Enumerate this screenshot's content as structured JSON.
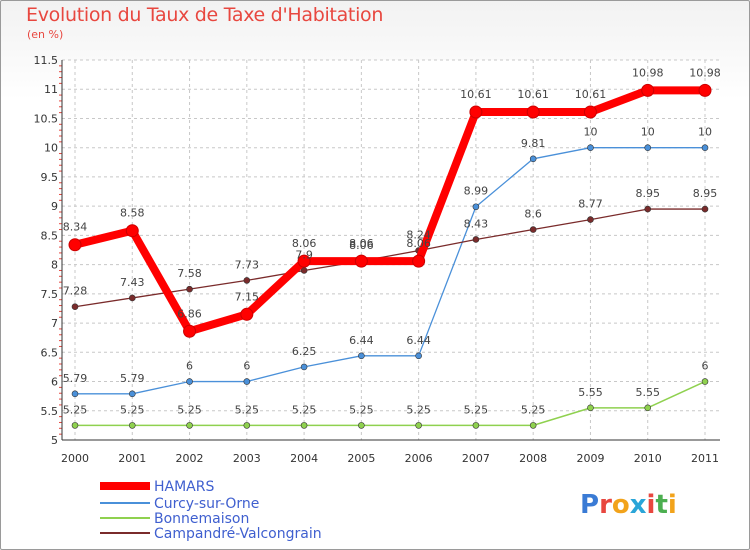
{
  "header": {
    "title": "Evolution du Taux de Taxe d'Habitation",
    "unit": "(en %)"
  },
  "logo": {
    "letters": [
      "P",
      "r",
      "o",
      "x",
      "i",
      "t",
      "i"
    ],
    "colors": [
      "#3a7bd5",
      "#e8473f",
      "#f2a31b",
      "#2aa5d8",
      "#e8473f",
      "#4caf50",
      "#f2a31b"
    ]
  },
  "chart_data": {
    "type": "line",
    "x": [
      "2000",
      "2001",
      "2002",
      "2003",
      "2004",
      "2005",
      "2006",
      "2007",
      "2008",
      "2009",
      "2010",
      "2011"
    ],
    "ylim": [
      5,
      11.5
    ],
    "yticks": [
      "5",
      "5.5",
      "6",
      "6.5",
      "7",
      "7.5",
      "8",
      "8.5",
      "9",
      "9.5",
      "10",
      "10.5",
      "11",
      "11.5"
    ],
    "grid": true,
    "legend_position": "bottom-left",
    "series": [
      {
        "name": "HAMARS",
        "color": "#ff0000",
        "values": [
          8.34,
          8.58,
          6.86,
          7.15,
          8.06,
          8.06,
          8.06,
          10.61,
          10.61,
          10.61,
          10.98,
          10.98
        ],
        "labels": [
          "8.34",
          "8.58",
          "6.86",
          "7.15",
          "8.06",
          "8.06",
          "8.06",
          "10.61",
          "10.61",
          "10.61",
          "10.98",
          "10.98"
        ]
      },
      {
        "name": "Curcy-sur-Orne",
        "color": "#4a90d9",
        "values": [
          5.79,
          5.79,
          6,
          6,
          6.25,
          6.44,
          6.44,
          8.99,
          9.81,
          10,
          10,
          10
        ],
        "labels": [
          "5.79",
          "5.79",
          "6",
          "6",
          "6.25",
          "6.44",
          "6.44",
          "8.99",
          "9.81",
          "10",
          "10",
          "10"
        ]
      },
      {
        "name": "Bonnemaison",
        "color": "#8fd14f",
        "values": [
          5.25,
          5.25,
          5.25,
          5.25,
          5.25,
          5.25,
          5.25,
          5.25,
          5.25,
          5.55,
          5.55,
          6
        ],
        "labels": [
          "5.25",
          "5.25",
          "5.25",
          "5.25",
          "5.25",
          "5.25",
          "5.25",
          "5.25",
          "5.25",
          "5.55",
          "5.55",
          "6"
        ]
      },
      {
        "name": "Campandré-Valcongrain",
        "color": "#7a2b2b",
        "values": [
          7.28,
          7.43,
          7.58,
          7.73,
          7.9,
          8.06,
          8.24,
          8.43,
          8.6,
          8.77,
          8.95,
          8.95
        ],
        "labels": [
          "7.28",
          "7.43",
          "7.58",
          "7.73",
          "7.9",
          "8.06",
          "8.24",
          "8.43",
          "8.6",
          "8.77",
          "8.95",
          "8.95"
        ]
      }
    ]
  }
}
